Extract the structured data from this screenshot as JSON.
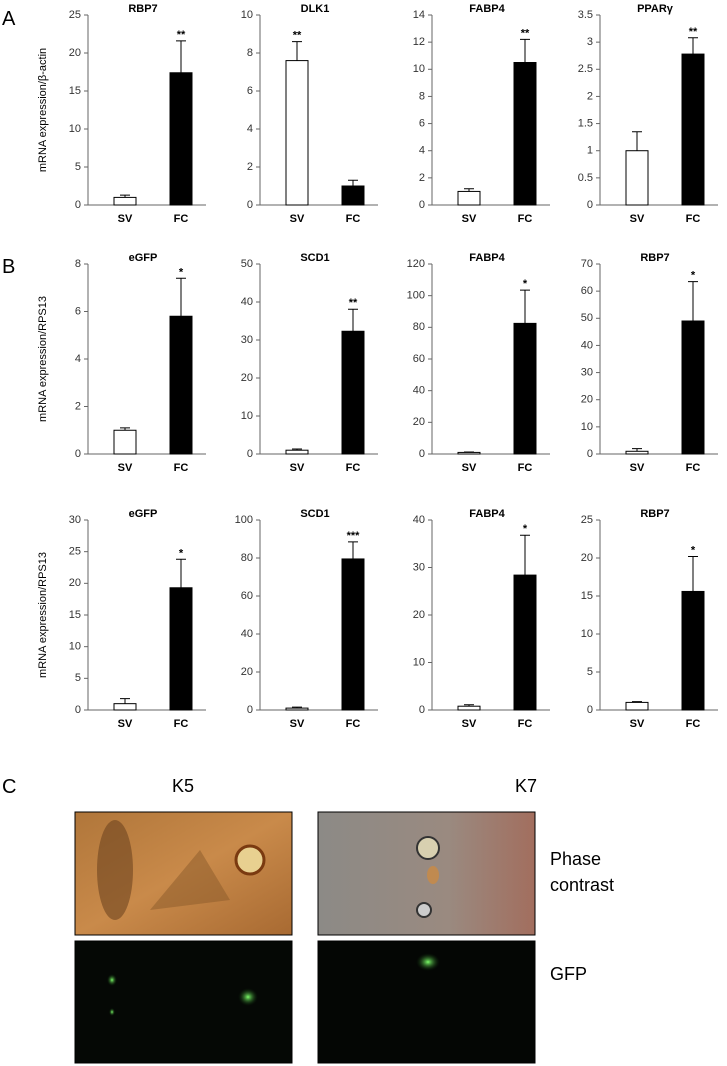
{
  "panel_labels": [
    "A",
    "B",
    "C"
  ],
  "panel_c": {
    "columns": [
      "K5",
      "K7"
    ],
    "rows": [
      "Phase contrast",
      "GFP"
    ]
  },
  "chart_data": [
    {
      "type": "bar",
      "title": "RBP7",
      "ylabel": "mRNA expression/β-actin",
      "categories": [
        "SV",
        "FC"
      ],
      "values": [
        1.0,
        17.4
      ],
      "errors": [
        0.3,
        4.2
      ],
      "significance": [
        null,
        "**"
      ],
      "colors": [
        "#ffffff",
        "#000000"
      ],
      "ylim": [
        0,
        25
      ],
      "yticks": [
        0,
        5,
        10,
        15,
        20,
        25
      ]
    },
    {
      "type": "bar",
      "title": "DLK1",
      "categories": [
        "SV",
        "FC"
      ],
      "values": [
        7.6,
        1.0
      ],
      "errors": [
        1.0,
        0.3
      ],
      "significance": [
        "**",
        null
      ],
      "colors": [
        "#ffffff",
        "#000000"
      ],
      "ylim": [
        0,
        10
      ],
      "yticks": [
        0,
        2,
        4,
        6,
        8,
        10
      ]
    },
    {
      "type": "bar",
      "title": "FABP4",
      "categories": [
        "SV",
        "FC"
      ],
      "values": [
        1.0,
        10.5
      ],
      "errors": [
        0.2,
        1.7
      ],
      "significance": [
        null,
        "**"
      ],
      "colors": [
        "#ffffff",
        "#000000"
      ],
      "ylim": [
        0,
        14
      ],
      "yticks": [
        0,
        2,
        4,
        6,
        8,
        10,
        12,
        14
      ]
    },
    {
      "type": "bar",
      "title": "PPARγ",
      "categories": [
        "SV",
        "FC"
      ],
      "values": [
        1.0,
        2.78
      ],
      "errors": [
        0.35,
        0.3
      ],
      "significance": [
        null,
        "**"
      ],
      "colors": [
        "#ffffff",
        "#000000"
      ],
      "ylim": [
        0,
        3.5
      ],
      "yticks": [
        0,
        0.5,
        1,
        1.5,
        2,
        2.5,
        3,
        3.5
      ]
    },
    {
      "type": "bar",
      "title": "eGFP",
      "ylabel": "mRNA expression/RPS13",
      "categories": [
        "SV",
        "FC"
      ],
      "values": [
        1.0,
        5.8
      ],
      "errors": [
        0.1,
        1.6
      ],
      "significance": [
        null,
        "*"
      ],
      "colors": [
        "#ffffff",
        "#000000"
      ],
      "ylim": [
        0,
        8
      ],
      "yticks": [
        0,
        2,
        4,
        6,
        8
      ]
    },
    {
      "type": "bar",
      "title": "SCD1",
      "categories": [
        "SV",
        "FC"
      ],
      "values": [
        1.0,
        32.3
      ],
      "errors": [
        0.3,
        5.8
      ],
      "significance": [
        null,
        "**"
      ],
      "colors": [
        "#ffffff",
        "#000000"
      ],
      "ylim": [
        0,
        50
      ],
      "yticks": [
        0,
        10,
        20,
        30,
        40,
        50
      ]
    },
    {
      "type": "bar",
      "title": "FABP4",
      "categories": [
        "SV",
        "FC"
      ],
      "values": [
        1.0,
        82.5
      ],
      "errors": [
        0.3,
        21
      ],
      "significance": [
        null,
        "*"
      ],
      "colors": [
        "#ffffff",
        "#000000"
      ],
      "ylim": [
        0,
        120
      ],
      "yticks": [
        0,
        20,
        40,
        60,
        80,
        100,
        120
      ]
    },
    {
      "type": "bar",
      "title": "RBP7",
      "categories": [
        "SV",
        "FC"
      ],
      "values": [
        1.0,
        49
      ],
      "errors": [
        1.0,
        14.5
      ],
      "significance": [
        null,
        "*"
      ],
      "colors": [
        "#ffffff",
        "#000000"
      ],
      "ylim": [
        0,
        70
      ],
      "yticks": [
        0,
        10,
        20,
        30,
        40,
        50,
        60,
        70
      ]
    },
    {
      "type": "bar",
      "title": "eGFP",
      "ylabel": "mRNA expression/RPS13",
      "categories": [
        "SV",
        "FC"
      ],
      "values": [
        1.0,
        19.3
      ],
      "errors": [
        0.8,
        4.5
      ],
      "significance": [
        null,
        "*"
      ],
      "colors": [
        "#ffffff",
        "#000000"
      ],
      "ylim": [
        0,
        30
      ],
      "yticks": [
        0,
        5,
        10,
        15,
        20,
        25,
        30
      ]
    },
    {
      "type": "bar",
      "title": "SCD1",
      "categories": [
        "SV",
        "FC"
      ],
      "values": [
        1.0,
        79.5
      ],
      "errors": [
        0.5,
        9
      ],
      "significance": [
        null,
        "***"
      ],
      "colors": [
        "#ffffff",
        "#000000"
      ],
      "ylim": [
        0,
        100
      ],
      "yticks": [
        0,
        20,
        40,
        60,
        80,
        100
      ]
    },
    {
      "type": "bar",
      "title": "FABP4",
      "categories": [
        "SV",
        "FC"
      ],
      "values": [
        0.8,
        28.4
      ],
      "errors": [
        0.3,
        8.4
      ],
      "significance": [
        null,
        "*"
      ],
      "colors": [
        "#ffffff",
        "#000000"
      ],
      "ylim": [
        0,
        40
      ],
      "yticks": [
        0,
        10,
        20,
        30,
        40
      ]
    },
    {
      "type": "bar",
      "title": "RBP7",
      "categories": [
        "SV",
        "FC"
      ],
      "values": [
        1.0,
        15.6
      ],
      "errors": [
        0.1,
        4.6
      ],
      "significance": [
        null,
        "*"
      ],
      "colors": [
        "#ffffff",
        "#000000"
      ],
      "ylim": [
        0,
        25
      ],
      "yticks": [
        0,
        5,
        10,
        15,
        20,
        25
      ]
    }
  ]
}
